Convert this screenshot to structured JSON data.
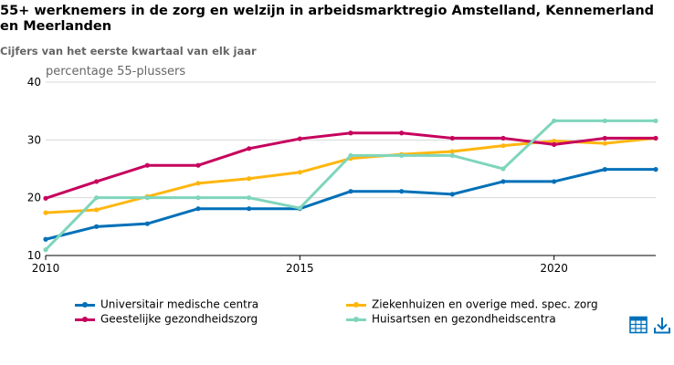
{
  "chart_data": {
    "type": "line",
    "title": "55+ werknemers in de zorg en welzijn in arbeidsmarktregio Amstelland, Kennemerland en Meerlanden",
    "subtitle": "Cijfers van het eerste kwartaal van elk jaar",
    "ylabel": "percentage 55-plussers",
    "xlabel": "",
    "ylim": [
      10,
      40
    ],
    "yticks": [
      10,
      20,
      30,
      40
    ],
    "xlim": [
      2010,
      2022
    ],
    "xticks": [
      2010,
      2015,
      2020
    ],
    "grid": true,
    "legend_position": "bottom",
    "x": [
      2010,
      2011,
      2012,
      2013,
      2014,
      2015,
      2016,
      2017,
      2018,
      2019,
      2020,
      2021,
      2022
    ],
    "series": [
      {
        "name": "Universitair medische centra",
        "color": "#0070b8",
        "values": [
          12.8,
          15.0,
          15.5,
          18.1,
          18.1,
          18.1,
          21.1,
          21.1,
          20.6,
          22.8,
          22.8,
          24.9,
          24.9
        ]
      },
      {
        "name": "Ziekenhuizen en overige med. spec. zorg",
        "color": "#ffb60f",
        "values": [
          17.4,
          17.9,
          20.2,
          22.5,
          23.3,
          24.4,
          26.8,
          27.5,
          28.0,
          29.0,
          29.8,
          29.4,
          30.3
        ]
      },
      {
        "name": "Geestelijke gezondheidszorg",
        "color": "#c6005d",
        "values": [
          19.9,
          22.8,
          25.6,
          25.6,
          28.5,
          30.2,
          31.2,
          31.2,
          30.3,
          30.3,
          29.2,
          30.3,
          30.3
        ]
      },
      {
        "name": "Huisartsen en gezondheidscentra",
        "color": "#7fd5bc",
        "values": [
          11.0,
          20.0,
          20.0,
          20.0,
          20.0,
          18.2,
          27.3,
          27.3,
          27.3,
          25.0,
          33.3,
          33.3,
          33.3
        ]
      }
    ]
  },
  "tools": {
    "table_icon": "table-icon",
    "download_icon": "download-icon",
    "accent_color": "#0070b8"
  }
}
